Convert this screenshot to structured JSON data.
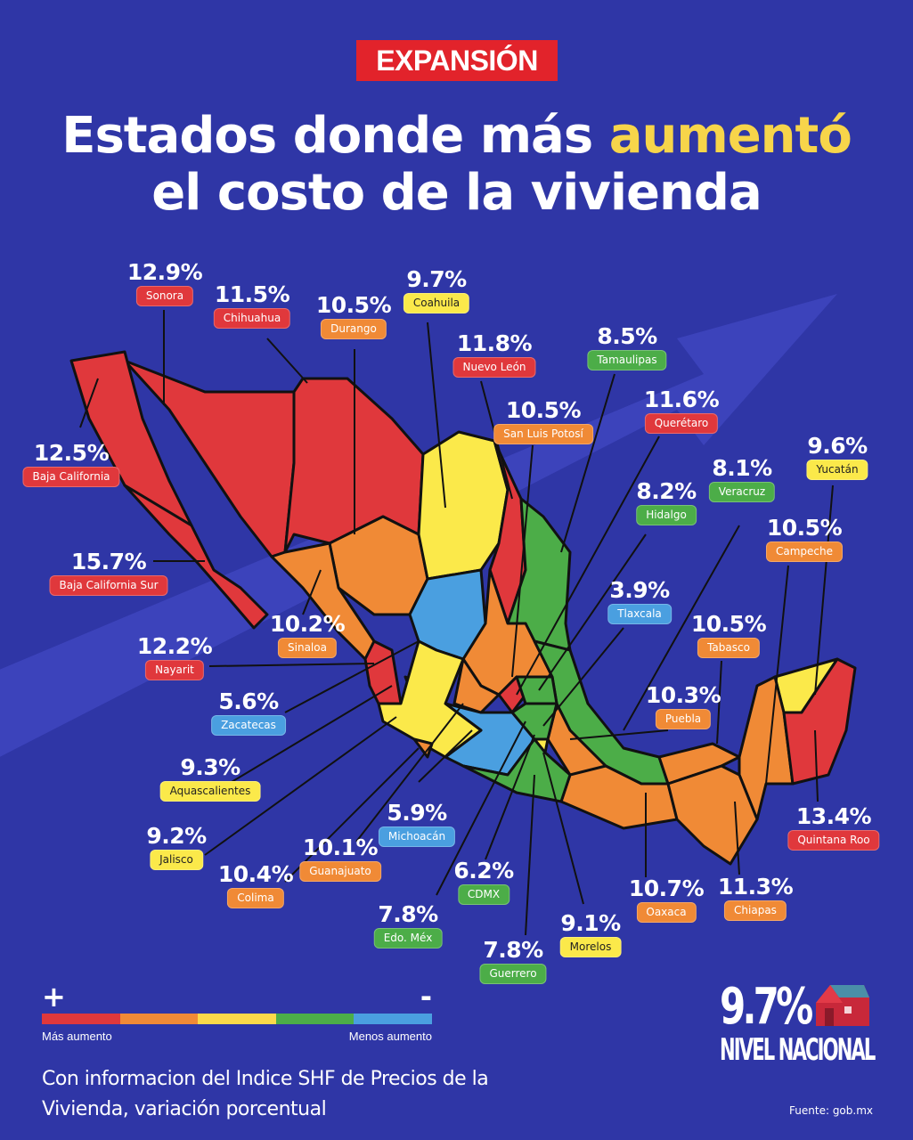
{
  "brand": "EXPANSIÓN",
  "title": {
    "line1_a": "Estados donde más ",
    "line1_highlight": "aumentó",
    "line2": "el costo de la vivienda"
  },
  "colors": {
    "background": "#2f36a6",
    "red": "#e0383c",
    "orange": "#f08a36",
    "yellow": "#fbe94a",
    "green": "#4cad48",
    "blue": "#4a9fe0",
    "highlight": "#f7d54a"
  },
  "states": [
    {
      "name": "Sonora",
      "value": "12.9%",
      "level": "red"
    },
    {
      "name": "Chihuahua",
      "value": "11.5%",
      "level": "red"
    },
    {
      "name": "Durango",
      "value": "10.5%",
      "level": "orange"
    },
    {
      "name": "Coahuila",
      "value": "9.7%",
      "level": "yellow"
    },
    {
      "name": "Nuevo León",
      "value": "11.8%",
      "level": "red"
    },
    {
      "name": "Tamaulipas",
      "value": "8.5%",
      "level": "green"
    },
    {
      "name": "San Luis Potosí",
      "value": "10.5%",
      "level": "orange"
    },
    {
      "name": "Querétaro",
      "value": "11.6%",
      "level": "red"
    },
    {
      "name": "Baja California",
      "value": "12.5%",
      "level": "red"
    },
    {
      "name": "Yucatán",
      "value": "9.6%",
      "level": "yellow"
    },
    {
      "name": "Veracruz",
      "value": "8.1%",
      "level": "green"
    },
    {
      "name": "Hidalgo",
      "value": "8.2%",
      "level": "green"
    },
    {
      "name": "Campeche",
      "value": "10.5%",
      "level": "orange"
    },
    {
      "name": "Baja California Sur",
      "value": "15.7%",
      "level": "red"
    },
    {
      "name": "Tlaxcala",
      "value": "3.9%",
      "level": "blue"
    },
    {
      "name": "Sinaloa",
      "value": "10.2%",
      "level": "orange"
    },
    {
      "name": "Tabasco",
      "value": "10.5%",
      "level": "orange"
    },
    {
      "name": "Nayarit",
      "value": "12.2%",
      "level": "red"
    },
    {
      "name": "Zacatecas",
      "value": "5.6%",
      "level": "blue"
    },
    {
      "name": "Puebla",
      "value": "10.3%",
      "level": "orange"
    },
    {
      "name": "Aquascalientes",
      "value": "9.3%",
      "level": "yellow"
    },
    {
      "name": "Quintana Roo",
      "value": "13.4%",
      "level": "red"
    },
    {
      "name": "Michoacán",
      "value": "5.9%",
      "level": "blue"
    },
    {
      "name": "Jalisco",
      "value": "9.2%",
      "level": "yellow"
    },
    {
      "name": "Guanajuato",
      "value": "10.1%",
      "level": "orange"
    },
    {
      "name": "Colima",
      "value": "10.4%",
      "level": "orange"
    },
    {
      "name": "CDMX",
      "value": "6.2%",
      "level": "green"
    },
    {
      "name": "Oaxaca",
      "value": "10.7%",
      "level": "orange"
    },
    {
      "name": "Chiapas",
      "value": "11.3%",
      "level": "orange"
    },
    {
      "name": "Edo. Méx",
      "value": "7.8%",
      "level": "green"
    },
    {
      "name": "Morelos",
      "value": "9.1%",
      "level": "yellow"
    },
    {
      "name": "Guerrero",
      "value": "7.8%",
      "level": "green"
    }
  ],
  "legend": {
    "plus": "+",
    "minus": "-",
    "more": "Más aumento",
    "less": "Menos aumento"
  },
  "source_note": "Con informacion del Indice SHF de Precios de la Vivienda, variación porcentual",
  "national": {
    "value": "9.7%",
    "label": "NIVEL NACIONAL"
  },
  "fuente": "Fuente: gob.mx"
}
